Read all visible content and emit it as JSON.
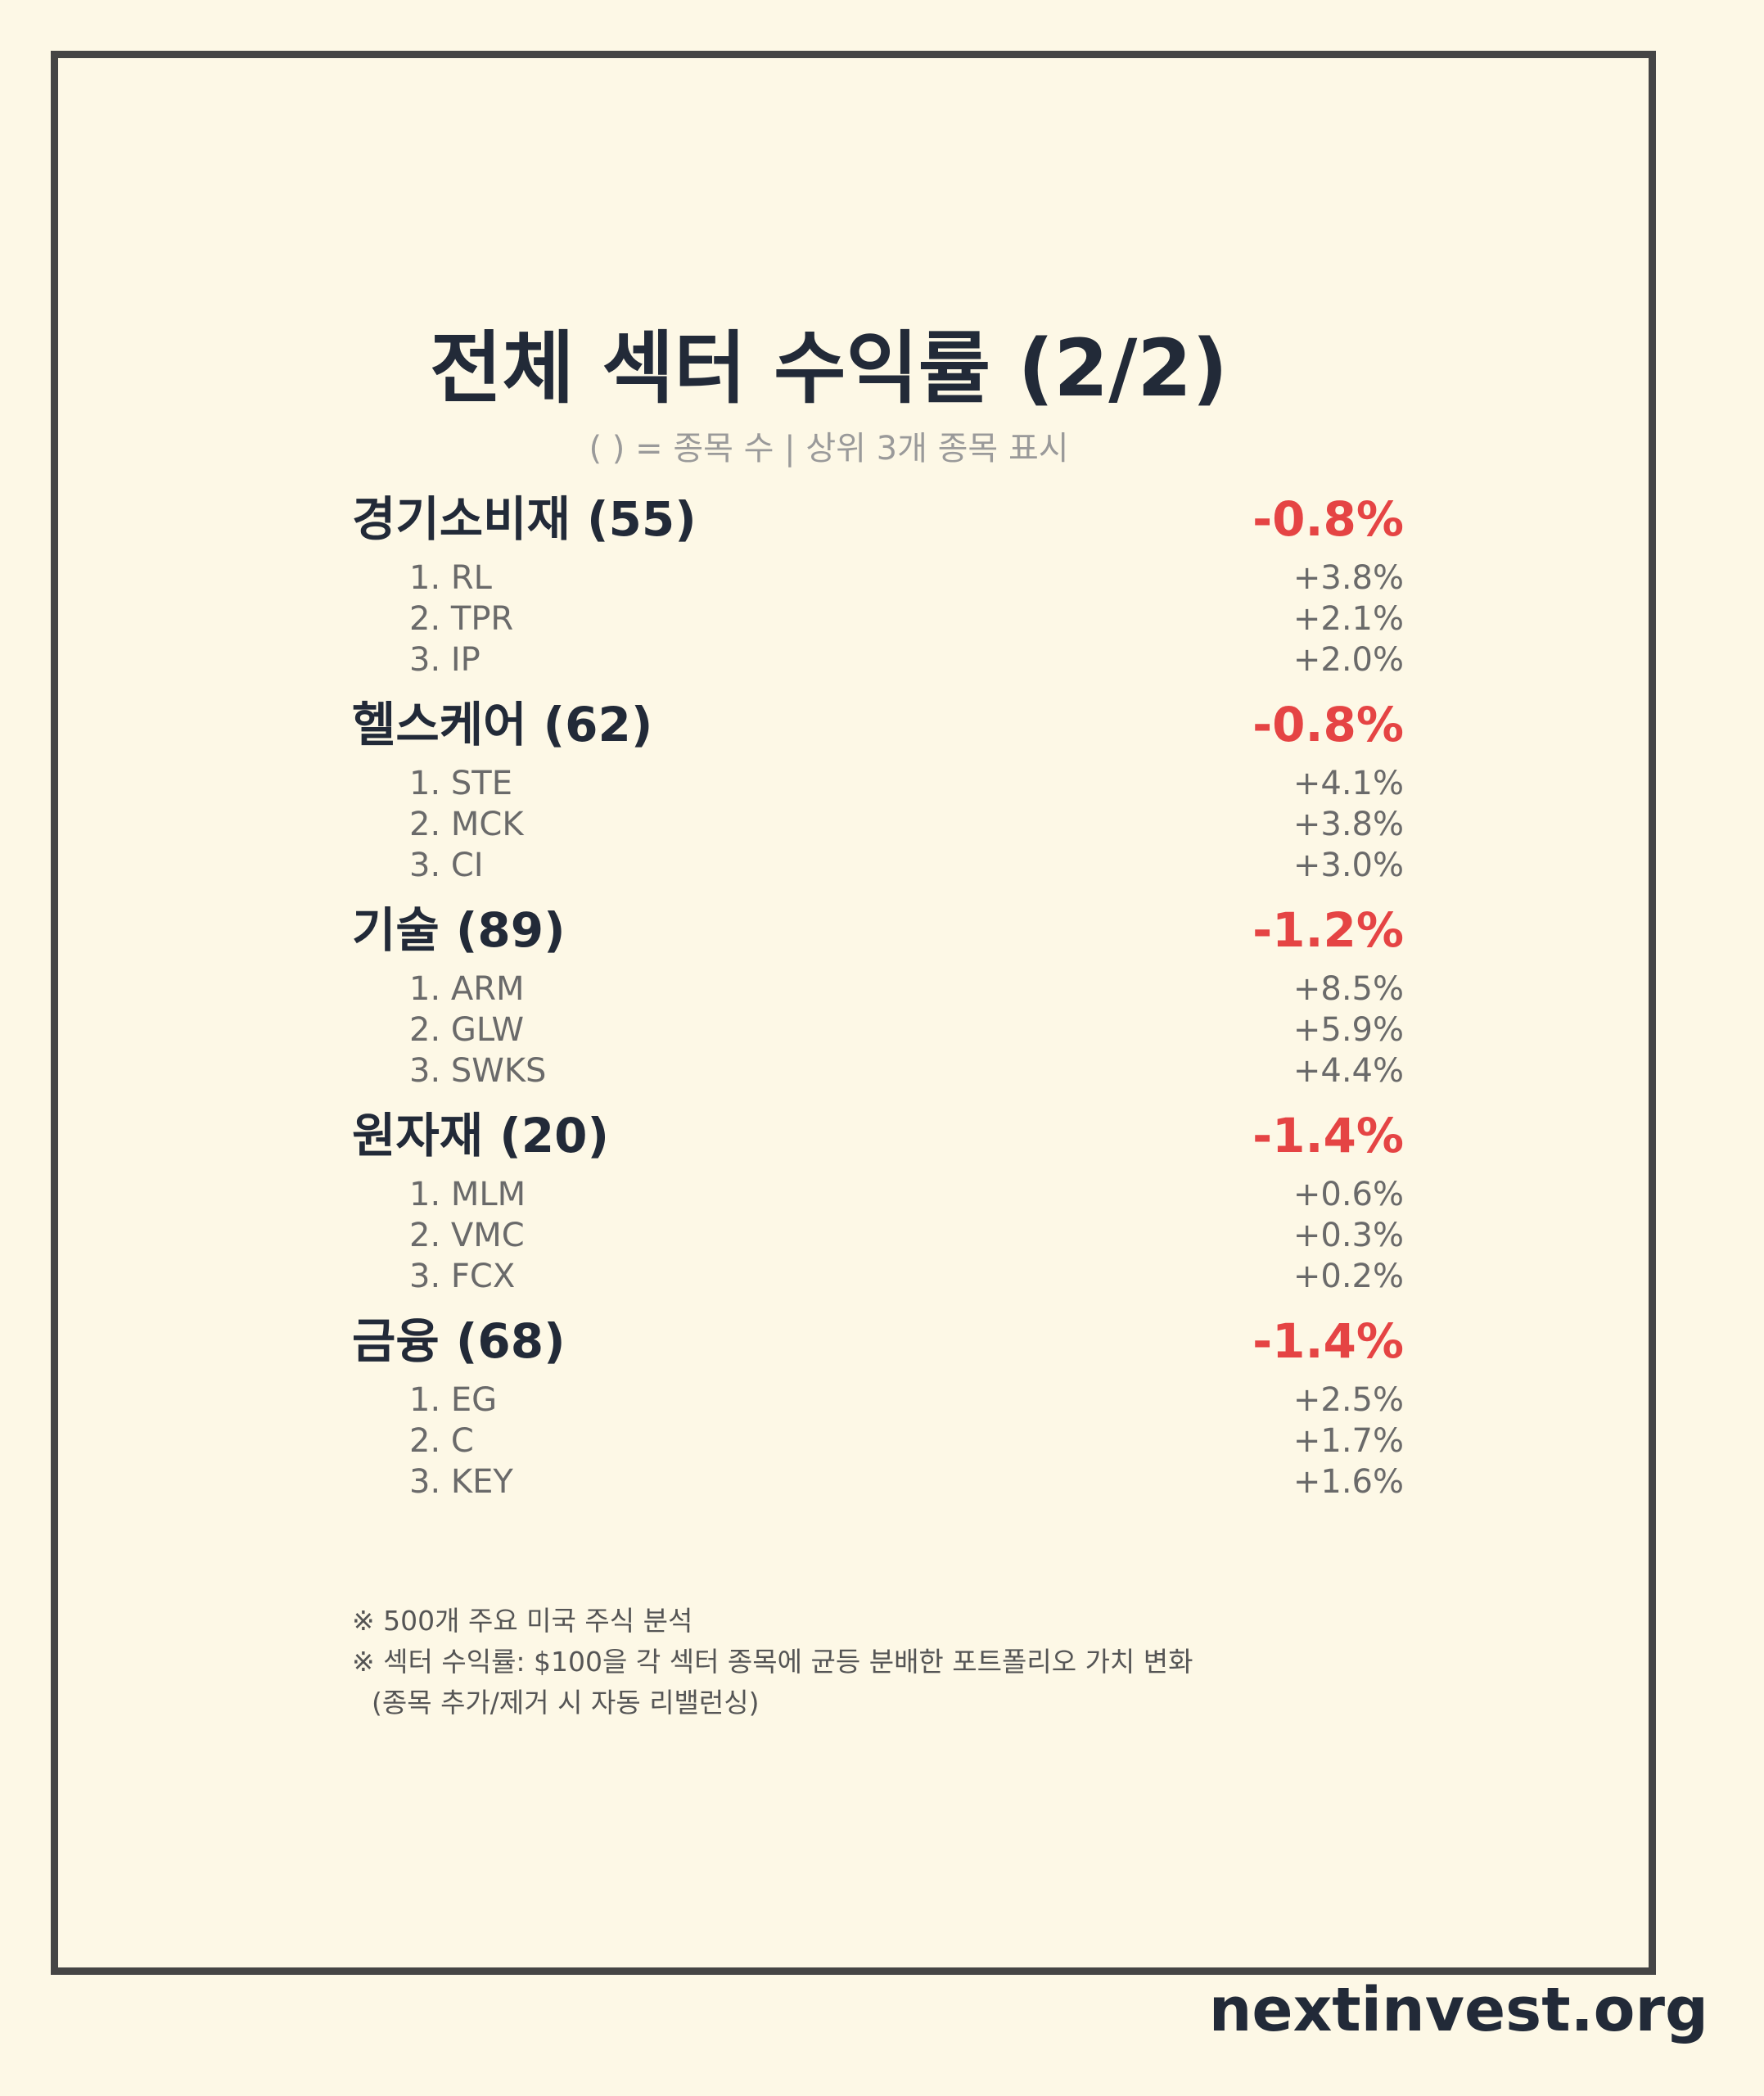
{
  "title": "전체 섹터 수익률 (2/2)",
  "subtitle": "( ) = 종목 수 | 상위 3개 종목 표시",
  "colors": {
    "negative": "#e54444",
    "text": "#222a38",
    "muted": "#6a6a6a",
    "background": "#fdf8e6"
  },
  "sectors": [
    {
      "name": "경기소비재 (55)",
      "return": "-0.8%",
      "stocks": [
        {
          "rank": "1. RL",
          "return": "+3.8%"
        },
        {
          "rank": "2. TPR",
          "return": "+2.1%"
        },
        {
          "rank": "3. IP",
          "return": "+2.0%"
        }
      ]
    },
    {
      "name": "헬스케어 (62)",
      "return": "-0.8%",
      "stocks": [
        {
          "rank": "1. STE",
          "return": "+4.1%"
        },
        {
          "rank": "2. MCK",
          "return": "+3.8%"
        },
        {
          "rank": "3. CI",
          "return": "+3.0%"
        }
      ]
    },
    {
      "name": "기술 (89)",
      "return": "-1.2%",
      "stocks": [
        {
          "rank": "1. ARM",
          "return": "+8.5%"
        },
        {
          "rank": "2. GLW",
          "return": "+5.9%"
        },
        {
          "rank": "3. SWKS",
          "return": "+4.4%"
        }
      ]
    },
    {
      "name": "원자재 (20)",
      "return": "-1.4%",
      "stocks": [
        {
          "rank": "1. MLM",
          "return": "+0.6%"
        },
        {
          "rank": "2. VMC",
          "return": "+0.3%"
        },
        {
          "rank": "3. FCX",
          "return": "+0.2%"
        }
      ]
    },
    {
      "name": "금융 (68)",
      "return": "-1.4%",
      "stocks": [
        {
          "rank": "1. EG",
          "return": "+2.5%"
        },
        {
          "rank": "2. C",
          "return": "+1.7%"
        },
        {
          "rank": "3. KEY",
          "return": "+1.6%"
        }
      ]
    }
  ],
  "notes": [
    "※ 500개 주요 미국 주식 분석",
    "※ 섹터 수익률: $100을 각 섹터 종목에 균등 분배한 포트폴리오 가치 변화",
    "(종목 추가/제거 시 자동 리밸런싱)"
  ],
  "brand": "nextinvest.org"
}
